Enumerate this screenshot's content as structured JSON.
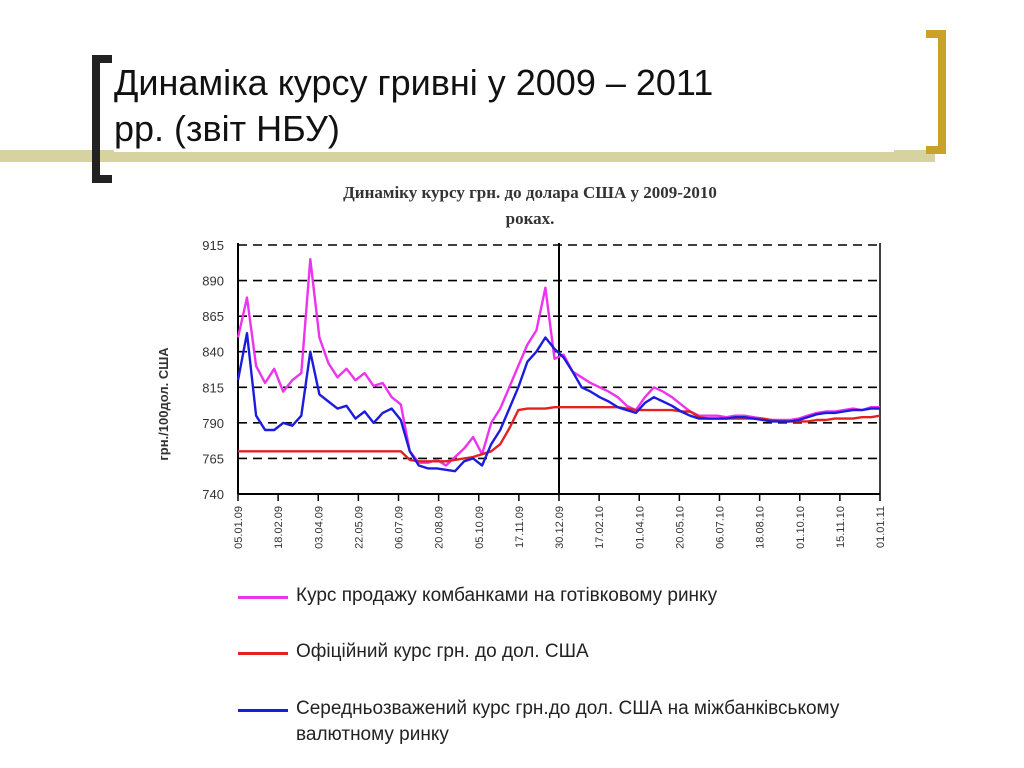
{
  "slide": {
    "title_line1": "Динаміка курсу гривні у 2009 – 2011",
    "title_line2": "рр. (звіт НБУ)"
  },
  "colors": {
    "bracket_left": "#222222",
    "bracket_right": "#c9a227",
    "deco_line": "#d6d3a1"
  },
  "chart_data": {
    "type": "line",
    "title_line1": "Динаміку курсу грн. до долара США у 2009-2010",
    "title_line2": "роках.",
    "ylabel": "грн./100дол. США",
    "ylim": [
      740,
      915
    ],
    "yticks": [
      740,
      765,
      790,
      815,
      840,
      865,
      890,
      915
    ],
    "xlabels": [
      "05.01.09",
      "18.02.09",
      "03.04.09",
      "22.05.09",
      "06.07.09",
      "20.08.09",
      "05.10.09",
      "17.11.09",
      "30.12.09",
      "17.02.10",
      "01.04.10",
      "20.05.10",
      "06.07.10",
      "18.08.10",
      "01.10.10",
      "15.11.10",
      "01.01.11"
    ],
    "grid": true,
    "separator_index": 8,
    "series": [
      {
        "name": "Курс продажу комбанками на готівковому ринку",
        "color": "#ee33ee",
        "values": [
          850,
          878,
          830,
          818,
          828,
          812,
          820,
          825,
          905,
          850,
          832,
          822,
          828,
          820,
          825,
          816,
          818,
          808,
          803,
          770,
          762,
          762,
          764,
          760,
          766,
          772,
          780,
          768,
          790,
          800,
          815,
          830,
          845,
          855,
          885,
          835,
          838,
          826,
          822,
          818,
          815,
          812,
          808,
          802,
          799,
          808,
          815,
          812,
          808,
          803,
          798,
          795,
          795,
          795,
          794,
          795,
          795,
          794,
          793,
          792,
          792,
          792,
          793,
          795,
          797,
          798,
          798,
          799,
          800,
          799,
          801,
          801
        ]
      },
      {
        "name": "Офіційний курс грн. до дол. США",
        "color": "#e22222",
        "values": [
          770,
          770,
          770,
          770,
          770,
          770,
          770,
          770,
          770,
          770,
          770,
          770,
          770,
          770,
          770,
          770,
          770,
          770,
          770,
          764,
          763,
          763,
          763,
          763,
          764,
          765,
          766,
          768,
          770,
          775,
          786,
          799,
          800,
          800,
          800,
          801,
          801,
          801,
          801,
          801,
          801,
          801,
          801,
          800,
          799,
          799,
          799,
          799,
          799,
          798,
          798,
          794,
          793,
          793,
          793,
          793,
          793,
          793,
          793,
          792,
          791,
          791,
          791,
          791,
          792,
          792,
          793,
          793,
          793,
          794,
          794,
          795
        ]
      },
      {
        "name": "Середньозважений курс грн.до  дол. США на міжбанківському валютному ринку",
        "color": "#1c1cdd",
        "values": [
          820,
          853,
          795,
          785,
          785,
          790,
          788,
          795,
          840,
          810,
          805,
          800,
          802,
          793,
          798,
          790,
          797,
          800,
          792,
          770,
          760,
          758,
          758,
          757,
          756,
          763,
          765,
          760,
          775,
          785,
          800,
          815,
          833,
          840,
          850,
          842,
          836,
          826,
          815,
          812,
          808,
          805,
          801,
          799,
          797,
          804,
          808,
          805,
          802,
          798,
          795,
          793,
          793,
          793,
          793,
          794,
          794,
          793,
          792,
          791,
          791,
          791,
          792,
          794,
          796,
          797,
          797,
          798,
          799,
          799,
          800,
          800
        ]
      }
    ]
  }
}
